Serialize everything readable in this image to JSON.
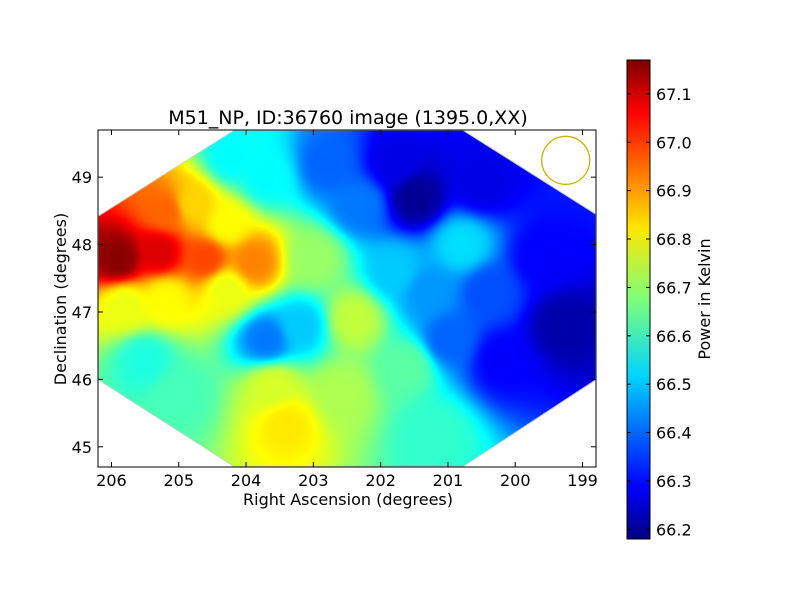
{
  "chart_data": {
    "type": "heatmap",
    "title": "M51_NP, ID:36760 image (1395.0,XX)",
    "xlabel": "Right Ascension (degrees)",
    "ylabel": "Declination (degrees)",
    "colorbar_label": "Power in Kelvin",
    "colormap": "jet",
    "xlim": [
      206.2,
      198.8
    ],
    "ylim": [
      44.7,
      49.7
    ],
    "xticks": [
      206,
      205,
      204,
      203,
      202,
      201,
      200,
      199
    ],
    "xtick_labels": [
      "206",
      "205",
      "204",
      "203",
      "202",
      "201",
      "200",
      "199"
    ],
    "yticks": [
      45,
      46,
      47,
      48,
      49
    ],
    "ytick_labels": [
      "45",
      "46",
      "47",
      "48",
      "49"
    ],
    "clim": [
      66.18,
      67.17
    ],
    "colorbar_ticks": [
      66.2,
      66.3,
      66.4,
      66.5,
      66.6,
      66.7,
      66.8,
      66.9,
      67.0,
      67.1
    ],
    "colorbar_tick_labels": [
      "66.2",
      "66.3",
      "66.4",
      "66.5",
      "66.6",
      "66.7",
      "66.8",
      "66.9",
      "67.0",
      "67.1"
    ],
    "beam_marker": {
      "ra": 199.25,
      "dec": 49.25,
      "color": "#c8b400"
    },
    "features": [
      {
        "ra": 205.9,
        "dec": 47.8,
        "value": 67.16
      },
      {
        "ra": 205.3,
        "dec": 47.9,
        "value": 67.08
      },
      {
        "ra": 204.6,
        "dec": 47.8,
        "value": 66.98
      },
      {
        "ra": 203.9,
        "dec": 47.75,
        "value": 66.92
      },
      {
        "ra": 205.2,
        "dec": 48.5,
        "value": 66.95
      },
      {
        "ra": 204.8,
        "dec": 48.6,
        "value": 66.84
      },
      {
        "ra": 204.3,
        "dec": 48.3,
        "value": 66.8
      },
      {
        "ra": 203.0,
        "dec": 47.8,
        "value": 66.7
      },
      {
        "ra": 205.8,
        "dec": 47.1,
        "value": 66.78
      },
      {
        "ra": 205.2,
        "dec": 47.2,
        "value": 66.8
      },
      {
        "ra": 204.3,
        "dec": 47.35,
        "value": 66.78
      },
      {
        "ra": 203.4,
        "dec": 45.35,
        "value": 66.82
      },
      {
        "ra": 203.6,
        "dec": 45.9,
        "value": 66.76
      },
      {
        "ra": 202.6,
        "dec": 45.8,
        "value": 66.72
      },
      {
        "ra": 202.4,
        "dec": 46.9,
        "value": 66.74
      },
      {
        "ra": 201.6,
        "dec": 46.2,
        "value": 66.64
      },
      {
        "ra": 201.2,
        "dec": 45.2,
        "value": 66.6
      },
      {
        "ra": 205.5,
        "dec": 46.3,
        "value": 66.58
      },
      {
        "ra": 205.0,
        "dec": 45.8,
        "value": 66.62
      },
      {
        "ra": 203.7,
        "dec": 46.6,
        "value": 66.42
      },
      {
        "ra": 203.2,
        "dec": 46.8,
        "value": 66.5
      },
      {
        "ra": 204.2,
        "dec": 49.3,
        "value": 66.55
      },
      {
        "ra": 203.7,
        "dec": 49.0,
        "value": 66.55
      },
      {
        "ra": 202.8,
        "dec": 49.2,
        "value": 66.4
      },
      {
        "ra": 202.3,
        "dec": 48.6,
        "value": 66.42
      },
      {
        "ra": 201.5,
        "dec": 48.7,
        "value": 66.2
      },
      {
        "ra": 201.8,
        "dec": 49.2,
        "value": 66.28
      },
      {
        "ra": 200.5,
        "dec": 48.9,
        "value": 66.28
      },
      {
        "ra": 200.8,
        "dec": 48.0,
        "value": 66.52
      },
      {
        "ra": 201.8,
        "dec": 47.6,
        "value": 66.5
      },
      {
        "ra": 201.3,
        "dec": 47.3,
        "value": 66.45
      },
      {
        "ra": 200.4,
        "dec": 47.3,
        "value": 66.38
      },
      {
        "ra": 199.3,
        "dec": 46.8,
        "value": 66.22
      },
      {
        "ra": 199.6,
        "dec": 47.8,
        "value": 66.3
      },
      {
        "ra": 200.2,
        "dec": 46.3,
        "value": 66.3
      },
      {
        "ra": 201.0,
        "dec": 46.6,
        "value": 66.4
      }
    ]
  }
}
